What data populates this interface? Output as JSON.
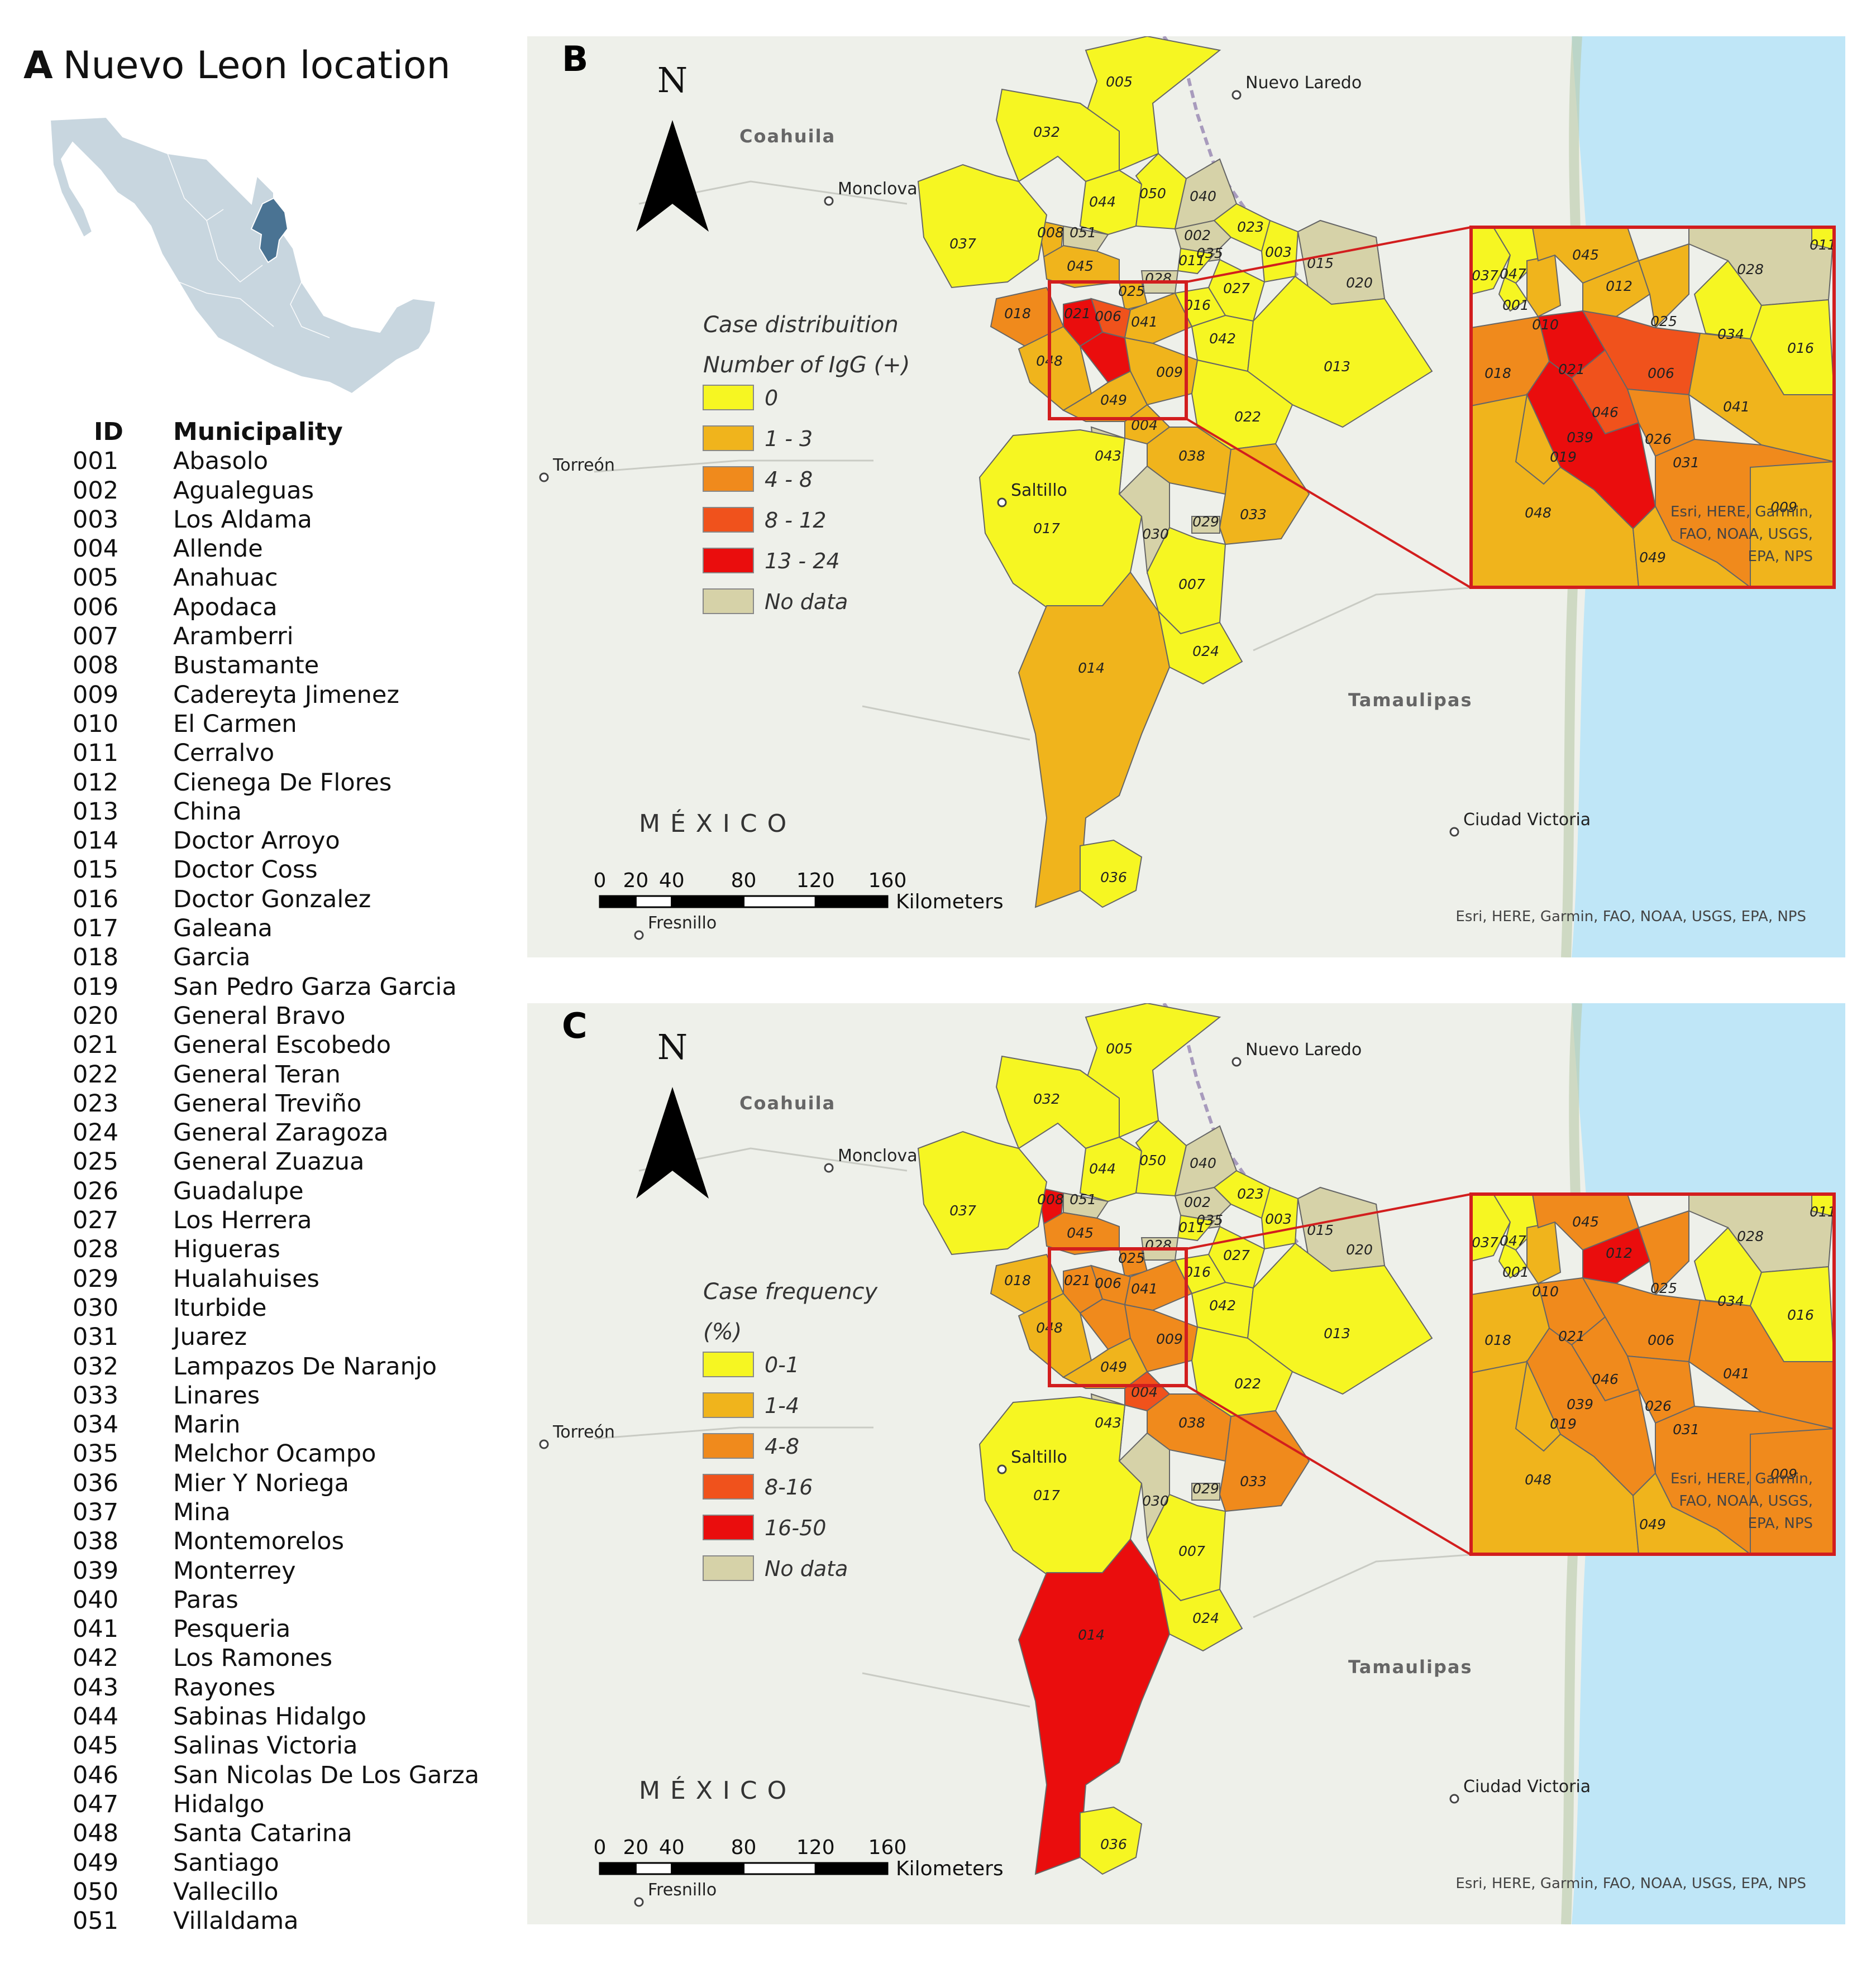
{
  "panel_a": {
    "letter": "A",
    "title": "Nuevo Leon location",
    "table_header": {
      "id": "ID",
      "name": "Municipality"
    },
    "municipalities": [
      {
        "id": "001",
        "name": "Abasolo"
      },
      {
        "id": "002",
        "name": "Agualeguas"
      },
      {
        "id": "003",
        "name": "Los Aldama"
      },
      {
        "id": "004",
        "name": "Allende"
      },
      {
        "id": "005",
        "name": "Anahuac"
      },
      {
        "id": "006",
        "name": "Apodaca"
      },
      {
        "id": "007",
        "name": "Aramberri"
      },
      {
        "id": "008",
        "name": "Bustamante"
      },
      {
        "id": "009",
        "name": "Cadereyta Jimenez"
      },
      {
        "id": "010",
        "name": "El Carmen"
      },
      {
        "id": "011",
        "name": "Cerralvo"
      },
      {
        "id": "012",
        "name": "Cienega De Flores"
      },
      {
        "id": "013",
        "name": "China"
      },
      {
        "id": "014",
        "name": "Doctor Arroyo"
      },
      {
        "id": "015",
        "name": "Doctor Coss"
      },
      {
        "id": "016",
        "name": "Doctor Gonzalez"
      },
      {
        "id": "017",
        "name": "Galeana"
      },
      {
        "id": "018",
        "name": "Garcia"
      },
      {
        "id": "019",
        "name": "San Pedro Garza Garcia"
      },
      {
        "id": "020",
        "name": "General Bravo"
      },
      {
        "id": "021",
        "name": "General Escobedo"
      },
      {
        "id": "022",
        "name": "General Teran"
      },
      {
        "id": "023",
        "name": "General Treviño"
      },
      {
        "id": "024",
        "name": "General Zaragoza"
      },
      {
        "id": "025",
        "name": "General Zuazua"
      },
      {
        "id": "026",
        "name": "Guadalupe"
      },
      {
        "id": "027",
        "name": "Los Herrera"
      },
      {
        "id": "028",
        "name": "Higueras"
      },
      {
        "id": "029",
        "name": "Hualahuises"
      },
      {
        "id": "030",
        "name": "Iturbide"
      },
      {
        "id": "031",
        "name": "Juarez"
      },
      {
        "id": "032",
        "name": "Lampazos De Naranjo"
      },
      {
        "id": "033",
        "name": "Linares"
      },
      {
        "id": "034",
        "name": "Marin"
      },
      {
        "id": "035",
        "name": "Melchor Ocampo"
      },
      {
        "id": "036",
        "name": "Mier Y Noriega"
      },
      {
        "id": "037",
        "name": "Mina"
      },
      {
        "id": "038",
        "name": "Montemorelos"
      },
      {
        "id": "039",
        "name": "Monterrey"
      },
      {
        "id": "040",
        "name": "Paras"
      },
      {
        "id": "041",
        "name": "Pesqueria"
      },
      {
        "id": "042",
        "name": "Los Ramones"
      },
      {
        "id": "043",
        "name": "Rayones"
      },
      {
        "id": "044",
        "name": "Sabinas Hidalgo"
      },
      {
        "id": "045",
        "name": "Salinas Victoria"
      },
      {
        "id": "046",
        "name": "San Nicolas De Los Garza"
      },
      {
        "id": "047",
        "name": "Hidalgo"
      },
      {
        "id": "048",
        "name": "Santa Catarina"
      },
      {
        "id": "049",
        "name": "Santiago"
      },
      {
        "id": "050",
        "name": "Vallecillo"
      },
      {
        "id": "051",
        "name": "Villaldama"
      }
    ]
  },
  "colors": {
    "c0": "#f6f622",
    "c1": "#f0b41c",
    "c2": "#f08a1c",
    "c3": "#f0521c",
    "c4": "#ea0d0d",
    "nodata": "#d6d2a8",
    "ocean": "#bfe6f7",
    "land": "#eef0ea",
    "boundary": "#666666",
    "inset_frame": "#d21e1e",
    "mexico": "#c8d6df",
    "nuevo_leon": "#4a7393"
  },
  "map_labels": {
    "north": "N",
    "cities": [
      "Nuevo Laredo",
      "Monclova",
      "Torreón",
      "Saltillo",
      "Ciudad Victoria",
      "Fresnillo"
    ],
    "states": [
      "Coahuila",
      "Tamaulipas"
    ],
    "country": "MÉXICO",
    "scale_ticks": [
      "0",
      "20",
      "40",
      "80",
      "120",
      "160"
    ],
    "scale_unit": "Kilometers",
    "credit": "Esri, HERE, Garmin, FAO, NOAA, USGS, EPA, NPS",
    "inset_credit": [
      "Esri, HERE, Garmin,",
      "FAO, NOAA, USGS,",
      "EPA, NPS"
    ]
  },
  "panel_b": {
    "letter": "B",
    "legend_title": [
      "Case distribuition",
      "Number of IgG (+)"
    ],
    "legend": [
      {
        "label": "0",
        "cls": "c0"
      },
      {
        "label": "1 - 3",
        "cls": "c1"
      },
      {
        "label": "4 - 8",
        "cls": "c2"
      },
      {
        "label": "8 - 12",
        "cls": "c3"
      },
      {
        "label": "13 - 24",
        "cls": "c4"
      },
      {
        "label": "No data",
        "cls": "nodata"
      }
    ],
    "classes": {
      "005": "c0",
      "032": "c0",
      "044": "c0",
      "050": "c0",
      "040": "nodata",
      "051": "nodata",
      "008": "c1",
      "037": "c0",
      "002": "nodata",
      "023": "c0",
      "003": "c0",
      "035": "nodata",
      "011": "c0",
      "015": "nodata",
      "020": "nodata",
      "045": "c1",
      "028": "nodata",
      "025": "c1",
      "027": "c0",
      "016": "c0",
      "018": "c2",
      "021": "c4",
      "006": "c3",
      "041": "c1",
      "042": "c0",
      "013": "c0",
      "048": "c1",
      "009": "c1",
      "049": "c1",
      "004": "c1",
      "022": "c0",
      "043": "nodata",
      "038": "c1",
      "029": "nodata",
      "033": "c1",
      "017": "c0",
      "030": "nodata",
      "007": "c0",
      "014": "c1",
      "024": "c0",
      "036": "c0",
      "047": "c0",
      "001": "c0",
      "010": "c1",
      "012": "c1",
      "034": "c0",
      "046": "c3",
      "039": "c4",
      "019": "c1",
      "026": "c2",
      "031": "c2"
    }
  },
  "panel_c": {
    "letter": "C",
    "legend_title": [
      "Case frequency",
      "(%)"
    ],
    "legend": [
      {
        "label": "0-1",
        "cls": "c0"
      },
      {
        "label": "1-4",
        "cls": "c1"
      },
      {
        "label": "4-8",
        "cls": "c2"
      },
      {
        "label": "8-16",
        "cls": "c3"
      },
      {
        "label": "16-50",
        "cls": "c4"
      },
      {
        "label": "No data",
        "cls": "nodata"
      }
    ],
    "classes": {
      "005": "c0",
      "032": "c0",
      "044": "c0",
      "050": "c0",
      "040": "nodata",
      "051": "nodata",
      "008": "c4",
      "037": "c0",
      "002": "nodata",
      "023": "c0",
      "003": "c0",
      "035": "nodata",
      "011": "c0",
      "015": "nodata",
      "020": "nodata",
      "045": "c2",
      "028": "nodata",
      "025": "c2",
      "027": "c0",
      "016": "c0",
      "018": "c1",
      "021": "c2",
      "006": "c2",
      "041": "c2",
      "042": "c0",
      "013": "c0",
      "048": "c1",
      "009": "c2",
      "049": "c1",
      "004": "c3",
      "022": "c0",
      "043": "nodata",
      "038": "c2",
      "029": "nodata",
      "033": "c2",
      "017": "c0",
      "030": "nodata",
      "007": "c0",
      "014": "c4",
      "024": "c0",
      "036": "c0",
      "047": "c0",
      "001": "c0",
      "010": "c1",
      "012": "c4",
      "034": "c0",
      "046": "c2",
      "039": "c2",
      "019": "c1",
      "026": "c2",
      "031": "c2"
    }
  }
}
